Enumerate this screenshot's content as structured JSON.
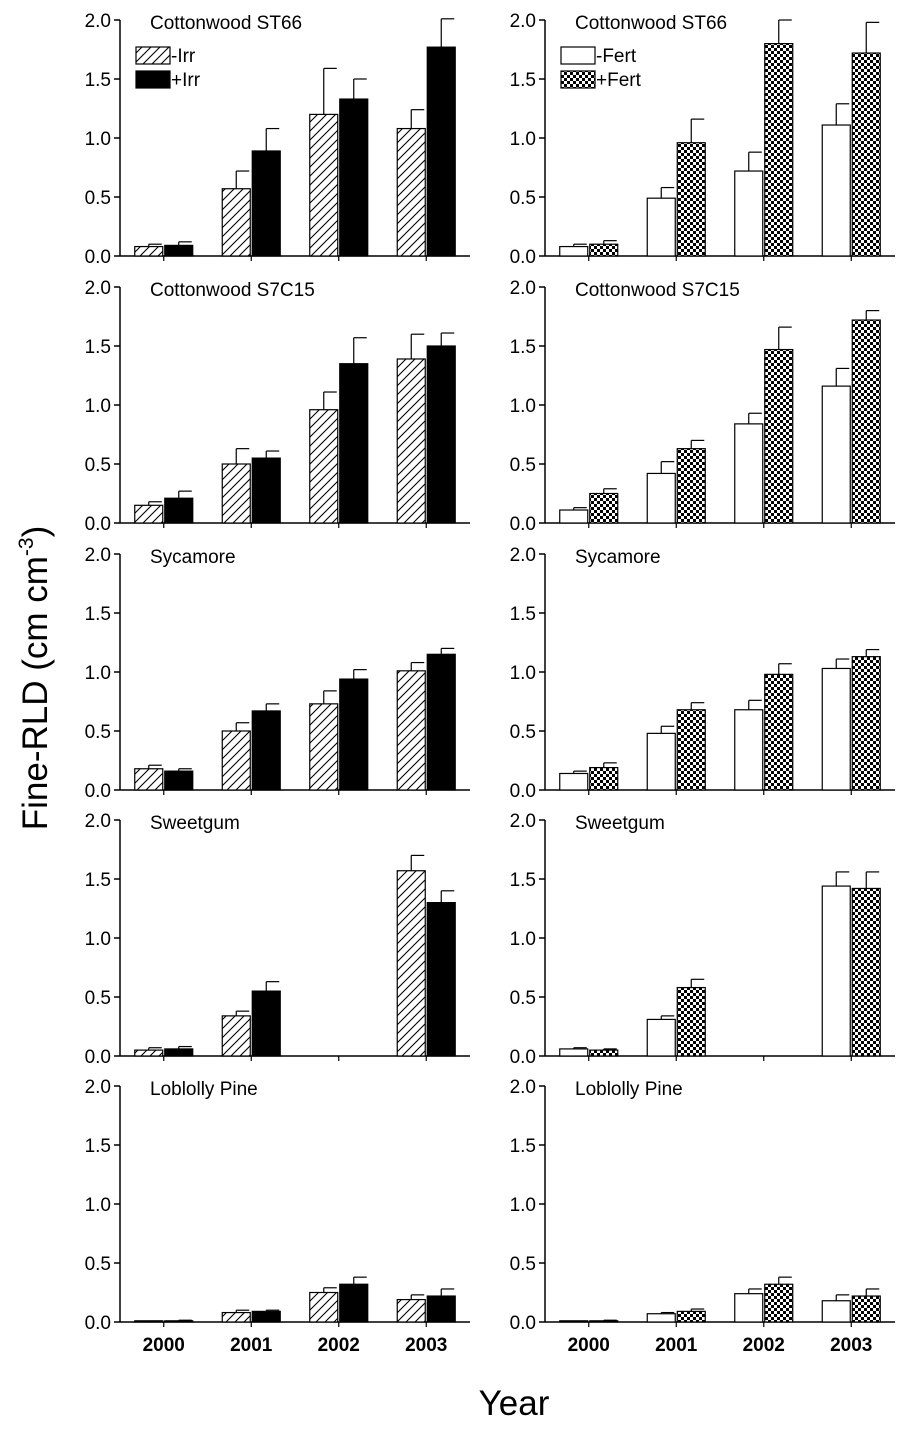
{
  "figure": {
    "ylabel_main": "Fine-RLD (cm cm",
    "ylabel_sup": "-3",
    "ylabel_close": ")",
    "xlabel": "Year"
  },
  "colors": {
    "irr_plus": "#000000",
    "irr_minus_hatch": "#000000",
    "fert_minus": "#ffffff",
    "fert_plus_check": "#000000"
  },
  "chart_data": [
    {
      "type": "bar",
      "panel": "left-1",
      "title": "Cottonwood ST66",
      "categories": [
        "2000",
        "2001",
        "2002",
        "2003"
      ],
      "ylim": [
        0,
        2.0
      ],
      "yticks": [
        "0.0",
        "0.5",
        "1.0",
        "1.5",
        "2.0"
      ],
      "legend": "top-left",
      "series": [
        {
          "name": "-Irr",
          "pattern": "hatch",
          "values": [
            0.08,
            0.57,
            1.2,
            1.08
          ],
          "errors": [
            0.02,
            0.15,
            0.39,
            0.16
          ]
        },
        {
          "name": "+Irr",
          "pattern": "solid",
          "values": [
            0.09,
            0.89,
            1.33,
            1.77
          ],
          "errors": [
            0.03,
            0.19,
            0.17,
            0.24
          ]
        }
      ]
    },
    {
      "type": "bar",
      "panel": "right-1",
      "title": "Cottonwood ST66",
      "categories": [
        "2000",
        "2001",
        "2002",
        "2003"
      ],
      "ylim": [
        0,
        2.0
      ],
      "yticks": [
        "0.0",
        "0.5",
        "1.0",
        "1.5",
        "2.0"
      ],
      "legend": "top-left",
      "series": [
        {
          "name": "-Fert",
          "pattern": "open",
          "values": [
            0.08,
            0.49,
            0.72,
            1.11
          ],
          "errors": [
            0.02,
            0.09,
            0.16,
            0.18
          ]
        },
        {
          "name": "+Fert",
          "pattern": "checker",
          "values": [
            0.1,
            0.96,
            1.8,
            1.72
          ],
          "errors": [
            0.03,
            0.2,
            0.2,
            0.26
          ]
        }
      ]
    },
    {
      "type": "bar",
      "panel": "left-2",
      "title": "Cottonwood S7C15",
      "categories": [
        "2000",
        "2001",
        "2002",
        "2003"
      ],
      "ylim": [
        0,
        2.0
      ],
      "yticks": [
        "0.0",
        "0.5",
        "1.0",
        "1.5",
        "2.0"
      ],
      "series": [
        {
          "name": "-Irr",
          "pattern": "hatch",
          "values": [
            0.15,
            0.5,
            0.96,
            1.39
          ],
          "errors": [
            0.03,
            0.13,
            0.15,
            0.21
          ]
        },
        {
          "name": "+Irr",
          "pattern": "solid",
          "values": [
            0.21,
            0.55,
            1.35,
            1.5
          ],
          "errors": [
            0.06,
            0.06,
            0.22,
            0.11
          ]
        }
      ]
    },
    {
      "type": "bar",
      "panel": "right-2",
      "title": "Cottonwood S7C15",
      "categories": [
        "2000",
        "2001",
        "2002",
        "2003"
      ],
      "ylim": [
        0,
        2.0
      ],
      "yticks": [
        "0.0",
        "0.5",
        "1.0",
        "1.5",
        "2.0"
      ],
      "series": [
        {
          "name": "-Fert",
          "pattern": "open",
          "values": [
            0.11,
            0.42,
            0.84,
            1.16
          ],
          "errors": [
            0.02,
            0.1,
            0.09,
            0.15
          ]
        },
        {
          "name": "+Fert",
          "pattern": "checker",
          "values": [
            0.25,
            0.63,
            1.47,
            1.72
          ],
          "errors": [
            0.04,
            0.07,
            0.19,
            0.08
          ]
        }
      ]
    },
    {
      "type": "bar",
      "panel": "left-3",
      "title": "Sycamore",
      "categories": [
        "2000",
        "2001",
        "2002",
        "2003"
      ],
      "ylim": [
        0,
        2.0
      ],
      "yticks": [
        "0.0",
        "0.5",
        "1.0",
        "1.5",
        "2.0"
      ],
      "series": [
        {
          "name": "-Irr",
          "pattern": "hatch",
          "values": [
            0.18,
            0.5,
            0.73,
            1.01
          ],
          "errors": [
            0.03,
            0.07,
            0.11,
            0.07
          ]
        },
        {
          "name": "+Irr",
          "pattern": "solid",
          "values": [
            0.16,
            0.67,
            0.94,
            1.15
          ],
          "errors": [
            0.02,
            0.06,
            0.08,
            0.05
          ]
        }
      ]
    },
    {
      "type": "bar",
      "panel": "right-3",
      "title": "Sycamore",
      "categories": [
        "2000",
        "2001",
        "2002",
        "2003"
      ],
      "ylim": [
        0,
        2.0
      ],
      "yticks": [
        "0.0",
        "0.5",
        "1.0",
        "1.5",
        "2.0"
      ],
      "series": [
        {
          "name": "-Fert",
          "pattern": "open",
          "values": [
            0.14,
            0.48,
            0.68,
            1.03
          ],
          "errors": [
            0.02,
            0.06,
            0.08,
            0.08
          ]
        },
        {
          "name": "+Fert",
          "pattern": "checker",
          "values": [
            0.19,
            0.68,
            0.98,
            1.13
          ],
          "errors": [
            0.04,
            0.06,
            0.09,
            0.06
          ]
        }
      ]
    },
    {
      "type": "bar",
      "panel": "left-4",
      "title": "Sweetgum",
      "categories": [
        "2000",
        "2001",
        "2002",
        "2003"
      ],
      "ylim": [
        0,
        2.0
      ],
      "yticks": [
        "0.0",
        "0.5",
        "1.0",
        "1.5",
        "2.0"
      ],
      "series": [
        {
          "name": "-Irr",
          "pattern": "hatch",
          "values": [
            0.05,
            0.34,
            null,
            1.57
          ],
          "errors": [
            0.02,
            0.04,
            null,
            0.13
          ]
        },
        {
          "name": "+Irr",
          "pattern": "solid",
          "values": [
            0.06,
            0.55,
            null,
            1.3
          ],
          "errors": [
            0.02,
            0.08,
            null,
            0.1
          ]
        }
      ]
    },
    {
      "type": "bar",
      "panel": "right-4",
      "title": "Sweetgum",
      "categories": [
        "2000",
        "2001",
        "2002",
        "2003"
      ],
      "ylim": [
        0,
        2.0
      ],
      "yticks": [
        "0.0",
        "0.5",
        "1.0",
        "1.5",
        "2.0"
      ],
      "series": [
        {
          "name": "-Fert",
          "pattern": "open",
          "values": [
            0.06,
            0.31,
            null,
            1.44
          ],
          "errors": [
            0.01,
            0.03,
            null,
            0.12
          ]
        },
        {
          "name": "+Fert",
          "pattern": "checker",
          "values": [
            0.05,
            0.58,
            null,
            1.42
          ],
          "errors": [
            0.01,
            0.07,
            null,
            0.14
          ]
        }
      ]
    },
    {
      "type": "bar",
      "panel": "left-5",
      "title": "Loblolly Pine",
      "categories": [
        "2000",
        "2001",
        "2002",
        "2003"
      ],
      "ylim": [
        0,
        2.0
      ],
      "yticks": [
        "0.0",
        "0.5",
        "1.0",
        "1.5",
        "2.0"
      ],
      "xticks_shown": true,
      "series": [
        {
          "name": "-Irr",
          "pattern": "hatch",
          "values": [
            0.005,
            0.08,
            0.25,
            0.19
          ],
          "errors": [
            0.003,
            0.02,
            0.04,
            0.04
          ]
        },
        {
          "name": "+Irr",
          "pattern": "solid",
          "values": [
            0.01,
            0.09,
            0.32,
            0.22
          ],
          "errors": [
            0.005,
            0.01,
            0.06,
            0.06
          ]
        }
      ]
    },
    {
      "type": "bar",
      "panel": "right-5",
      "title": "Loblolly Pine",
      "categories": [
        "2000",
        "2001",
        "2002",
        "2003"
      ],
      "ylim": [
        0,
        2.0
      ],
      "yticks": [
        "0.0",
        "0.5",
        "1.0",
        "1.5",
        "2.0"
      ],
      "xticks_shown": true,
      "series": [
        {
          "name": "-Fert",
          "pattern": "open",
          "values": [
            0.005,
            0.07,
            0.24,
            0.18
          ],
          "errors": [
            0.002,
            0.01,
            0.04,
            0.05
          ]
        },
        {
          "name": "+Fert",
          "pattern": "checker",
          "values": [
            0.01,
            0.09,
            0.32,
            0.22
          ],
          "errors": [
            0.005,
            0.02,
            0.06,
            0.06
          ]
        }
      ]
    }
  ]
}
